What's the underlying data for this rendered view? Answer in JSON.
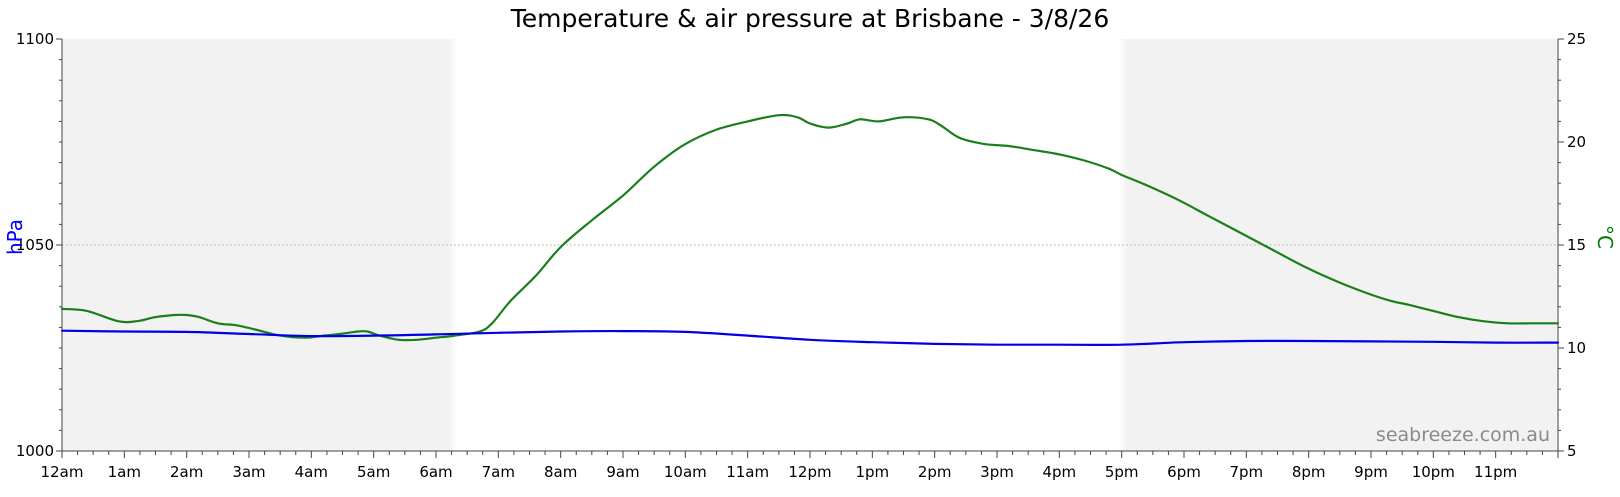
{
  "chart_data": {
    "type": "line",
    "title": "Temperature & air pressure at Brisbane - 3/8/26",
    "watermark": "seabreeze.com.au",
    "x_tick_labels": [
      "12am",
      "1am",
      "2am",
      "3am",
      "4am",
      "5am",
      "6am",
      "7am",
      "8am",
      "9am",
      "10am",
      "11am",
      "12pm",
      "1pm",
      "2pm",
      "3pm",
      "4pm",
      "5pm",
      "6pm",
      "7pm",
      "8pm",
      "9pm",
      "10pm",
      "11pm"
    ],
    "x_range_hours": [
      0,
      24
    ],
    "night_shading_hours": [
      [
        0,
        6.33
      ],
      [
        16.95,
        24
      ]
    ],
    "left_axis": {
      "label": "hPa",
      "ylim": [
        1000,
        1100
      ],
      "ticks": [
        "1000",
        "1050",
        "1100"
      ],
      "color": "#0000ff"
    },
    "right_axis": {
      "label": "°C",
      "ylim": [
        5,
        25
      ],
      "ticks": [
        "5",
        "10",
        "15",
        "20",
        "25"
      ],
      "color": "#008000"
    },
    "reference_line": {
      "axis": "left",
      "value": 1050
    },
    "series": [
      {
        "axis": "right",
        "color": "#1a7f1a",
        "x_hours": [
          0,
          0.4,
          0.9,
          1.2,
          1.5,
          1.8,
          2.0,
          2.2,
          2.5,
          2.8,
          3.1,
          3.5,
          3.9,
          4.2,
          4.5,
          4.75,
          4.9,
          5.1,
          5.4,
          5.7,
          6.0,
          6.3,
          6.7,
          6.9,
          7.2,
          7.6,
          8.0,
          8.5,
          9.0,
          9.5,
          10.0,
          10.5,
          11.0,
          11.5,
          11.8,
          12.0,
          12.3,
          12.6,
          12.8,
          13.1,
          13.5,
          13.9,
          14.1,
          14.4,
          14.8,
          15.2,
          15.6,
          16.0,
          16.4,
          16.8,
          17.0,
          17.4,
          17.9,
          18.4,
          18.9,
          19.4,
          19.9,
          20.4,
          20.9,
          21.3,
          21.6,
          22.0,
          22.4,
          22.8,
          23.2,
          23.6,
          24.0
        ],
        "values": [
          11.9,
          11.8,
          11.3,
          11.3,
          11.5,
          11.6,
          11.6,
          11.5,
          11.2,
          11.1,
          10.9,
          10.6,
          10.5,
          10.6,
          10.7,
          10.8,
          10.8,
          10.6,
          10.4,
          10.4,
          10.5,
          10.6,
          10.8,
          11.2,
          12.3,
          13.5,
          14.9,
          16.2,
          17.4,
          18.8,
          19.9,
          20.6,
          21.0,
          21.3,
          21.2,
          20.9,
          20.7,
          20.9,
          21.1,
          21.0,
          21.2,
          21.1,
          20.8,
          20.2,
          19.9,
          19.8,
          19.6,
          19.4,
          19.1,
          18.7,
          18.4,
          17.9,
          17.2,
          16.4,
          15.6,
          14.8,
          14.0,
          13.3,
          12.7,
          12.3,
          12.1,
          11.8,
          11.5,
          11.3,
          11.2,
          11.2,
          11.2
        ]
      },
      {
        "axis": "left",
        "color": "#0000e6",
        "x_hours": [
          0,
          1,
          2,
          3,
          4,
          5,
          6,
          7,
          8,
          9,
          10,
          11,
          12,
          13,
          14,
          15,
          16,
          17,
          18,
          19,
          20,
          21,
          22,
          23,
          24
        ],
        "values": [
          1029.2,
          1029.0,
          1028.9,
          1028.4,
          1027.9,
          1028.0,
          1028.3,
          1028.7,
          1029.0,
          1029.1,
          1028.9,
          1028.0,
          1027.0,
          1026.4,
          1026.0,
          1025.8,
          1025.8,
          1025.8,
          1026.4,
          1026.7,
          1026.7,
          1026.6,
          1026.5,
          1026.3,
          1026.3
        ]
      }
    ]
  }
}
